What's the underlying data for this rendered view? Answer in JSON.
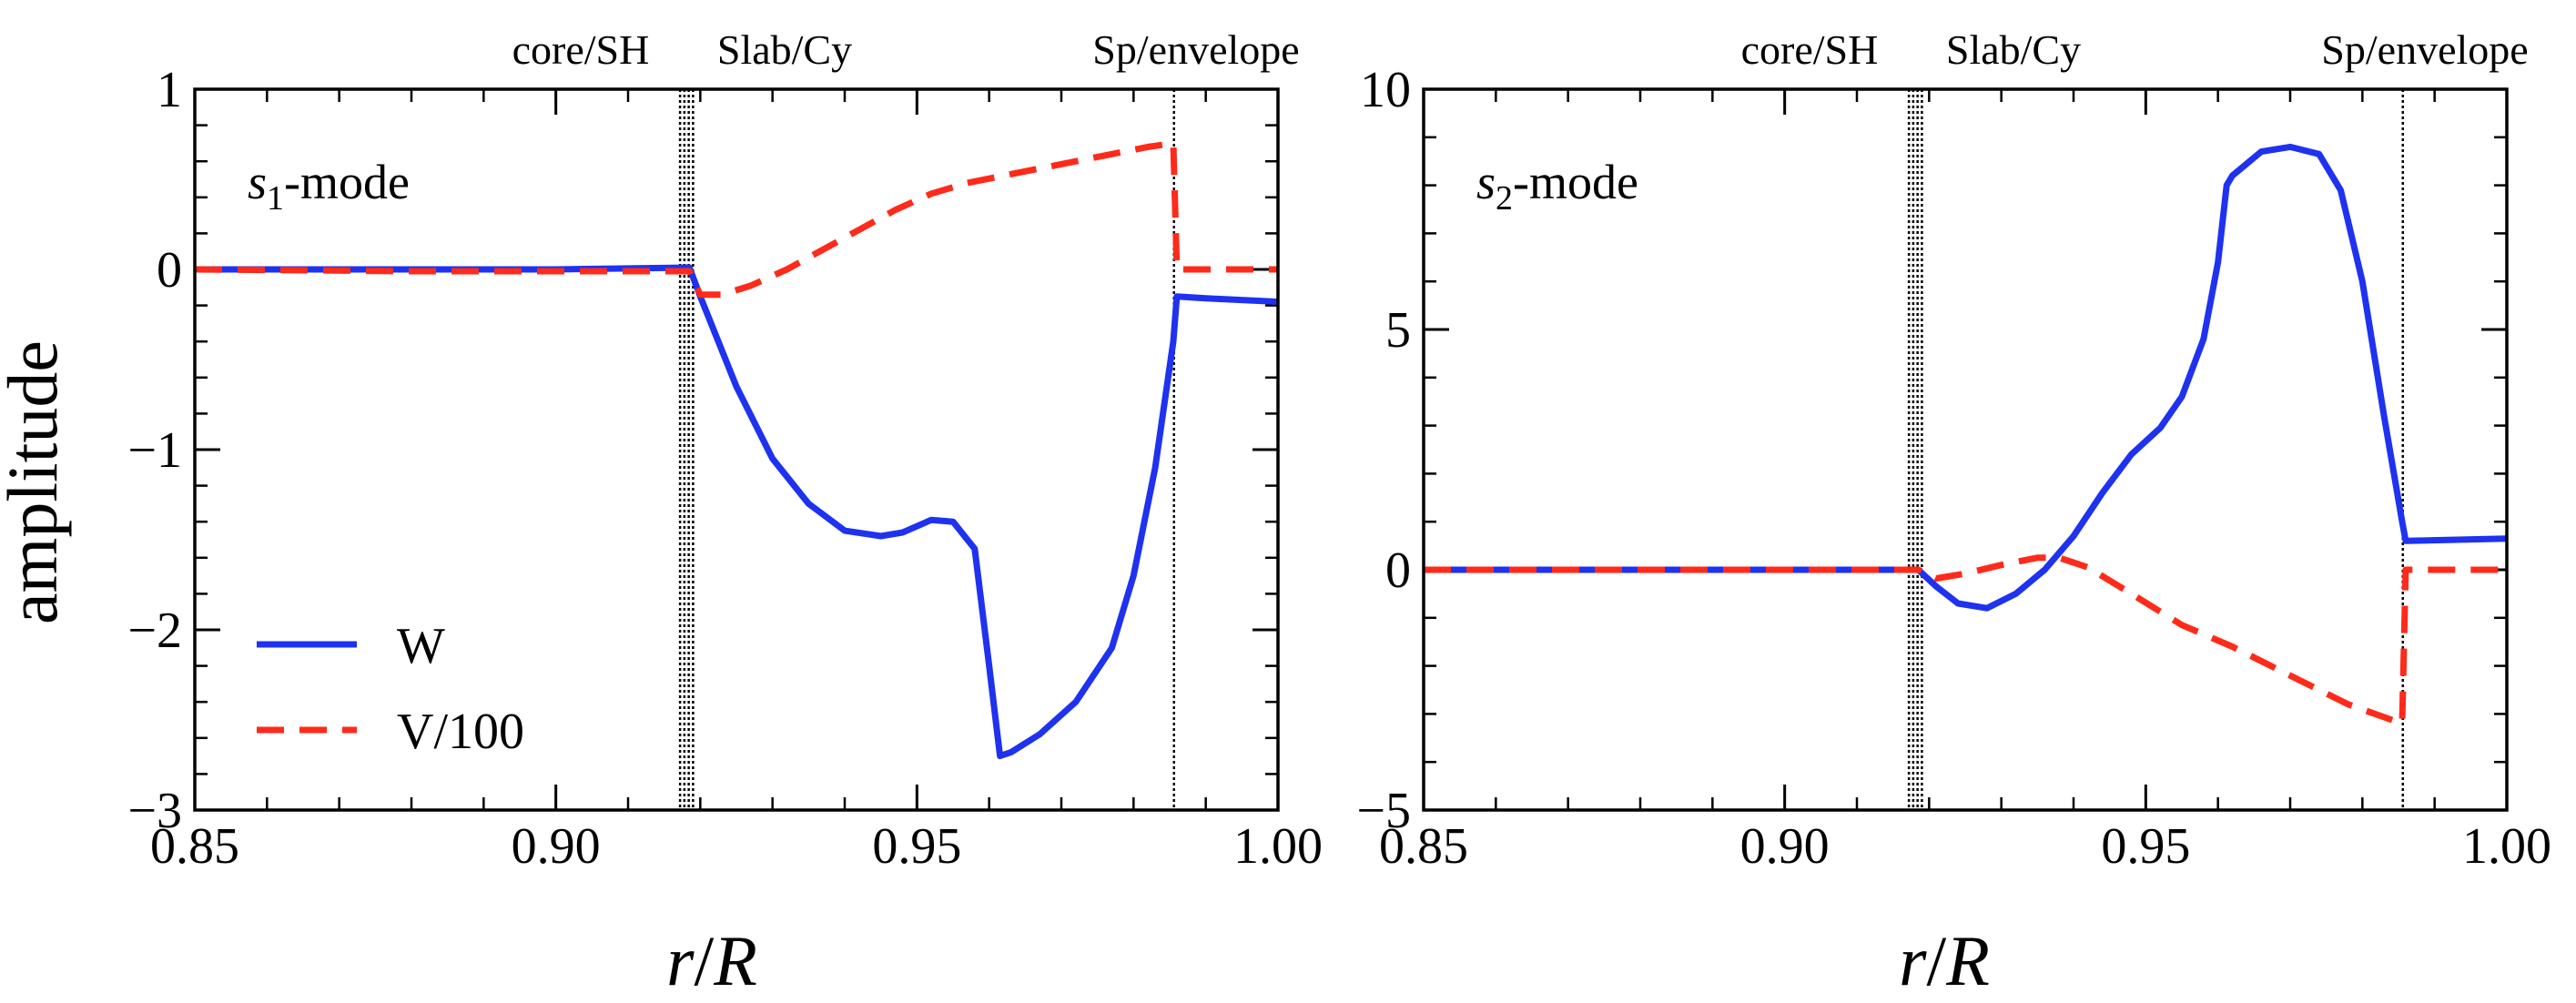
{
  "figure": {
    "ylabel": "amplitude",
    "xlabel": {
      "r": "r",
      "slash": "/",
      "R": "R"
    }
  },
  "chart_data": [
    {
      "type": "line",
      "mode_label": {
        "prefix": "s",
        "subscript": "1",
        "suffix": "-mode"
      },
      "xlim": [
        0.85,
        1.0
      ],
      "ylim": [
        -3,
        1
      ],
      "xticks": [
        0.85,
        0.9,
        0.95,
        1.0
      ],
      "xtick_labels": [
        "0.85",
        "0.90",
        "0.95",
        "1.00"
      ],
      "yticks": [
        -3,
        -2,
        -1,
        0,
        1
      ],
      "ytick_labels": [
        "−3",
        "−2",
        "−1",
        "0",
        "1"
      ],
      "region_labels": [
        "core/SH",
        "Slab/Cy",
        "Sp/envelope"
      ],
      "region_boundaries": [
        0.9172,
        0.9178,
        0.9184,
        0.919,
        0.9856
      ],
      "legend": {
        "position": "lower-left",
        "entries": [
          "W",
          "V/100"
        ]
      },
      "series": [
        {
          "name": "W",
          "color": "#1e32f0",
          "style": "solid",
          "x": [
            0.85,
            0.88,
            0.9,
            0.9185,
            0.92,
            0.925,
            0.93,
            0.935,
            0.94,
            0.945,
            0.948,
            0.952,
            0.955,
            0.958,
            0.96,
            0.9615,
            0.963,
            0.967,
            0.972,
            0.977,
            0.98,
            0.983,
            0.9855,
            0.986,
            0.99,
            1.0
          ],
          "y": [
            0.0,
            0.0,
            0.0,
            0.01,
            -0.15,
            -0.65,
            -1.05,
            -1.3,
            -1.45,
            -1.48,
            -1.46,
            -1.39,
            -1.4,
            -1.55,
            -2.2,
            -2.7,
            -2.68,
            -2.58,
            -2.4,
            -2.1,
            -1.7,
            -1.1,
            -0.4,
            -0.15,
            -0.16,
            -0.18
          ]
        },
        {
          "name": "V/100",
          "color": "#ff2a1a",
          "style": "dashed",
          "x": [
            0.85,
            0.88,
            0.9,
            0.9185,
            0.92,
            0.923,
            0.927,
            0.932,
            0.937,
            0.942,
            0.947,
            0.952,
            0.957,
            0.962,
            0.967,
            0.972,
            0.977,
            0.982,
            0.9855,
            0.986,
            1.0
          ],
          "y": [
            0.0,
            -0.01,
            -0.01,
            -0.01,
            -0.14,
            -0.14,
            -0.09,
            0.0,
            0.11,
            0.22,
            0.33,
            0.42,
            0.48,
            0.52,
            0.56,
            0.6,
            0.64,
            0.68,
            0.7,
            0.0,
            0.0
          ]
        }
      ]
    },
    {
      "type": "line",
      "mode_label": {
        "prefix": "s",
        "subscript": "2",
        "suffix": "-mode"
      },
      "xlim": [
        0.85,
        1.0
      ],
      "ylim": [
        -5,
        10
      ],
      "xticks": [
        0.85,
        0.9,
        0.95,
        1.0
      ],
      "xtick_labels": [
        "0.85",
        "0.90",
        "0.95",
        "1.00"
      ],
      "yticks": [
        -5,
        0,
        5,
        10
      ],
      "ytick_labels": [
        "−5",
        "0",
        "5",
        "10"
      ],
      "region_labels": [
        "core/SH",
        "Slab/Cy",
        "Sp/envelope"
      ],
      "region_boundaries": [
        0.9172,
        0.9178,
        0.9184,
        0.919,
        0.9856
      ],
      "series": [
        {
          "name": "W",
          "color": "#1e32f0",
          "style": "solid",
          "x": [
            0.85,
            0.88,
            0.9,
            0.9185,
            0.921,
            0.924,
            0.928,
            0.932,
            0.936,
            0.94,
            0.944,
            0.948,
            0.952,
            0.955,
            0.958,
            0.96,
            0.9612,
            0.962,
            0.966,
            0.97,
            0.974,
            0.977,
            0.98,
            0.983,
            0.9855,
            0.986,
            1.0
          ],
          "y": [
            0.0,
            0.0,
            0.0,
            0.0,
            -0.35,
            -0.7,
            -0.8,
            -0.5,
            0.0,
            0.7,
            1.6,
            2.4,
            2.95,
            3.6,
            4.8,
            6.4,
            8.0,
            8.2,
            8.7,
            8.8,
            8.65,
            7.9,
            6.0,
            3.2,
            1.0,
            0.6,
            0.65
          ]
        },
        {
          "name": "V/100",
          "color": "#ff2a1a",
          "style": "dashed",
          "x": [
            0.85,
            0.88,
            0.9,
            0.9185,
            0.921,
            0.925,
            0.93,
            0.935,
            0.938,
            0.942,
            0.948,
            0.955,
            0.962,
            0.97,
            0.978,
            0.9855,
            0.986,
            1.0
          ],
          "y": [
            0.0,
            0.0,
            0.0,
            0.0,
            -0.18,
            -0.08,
            0.1,
            0.25,
            0.25,
            0.05,
            -0.5,
            -1.15,
            -1.6,
            -2.2,
            -2.8,
            -3.2,
            0.0,
            0.0
          ]
        }
      ]
    }
  ]
}
